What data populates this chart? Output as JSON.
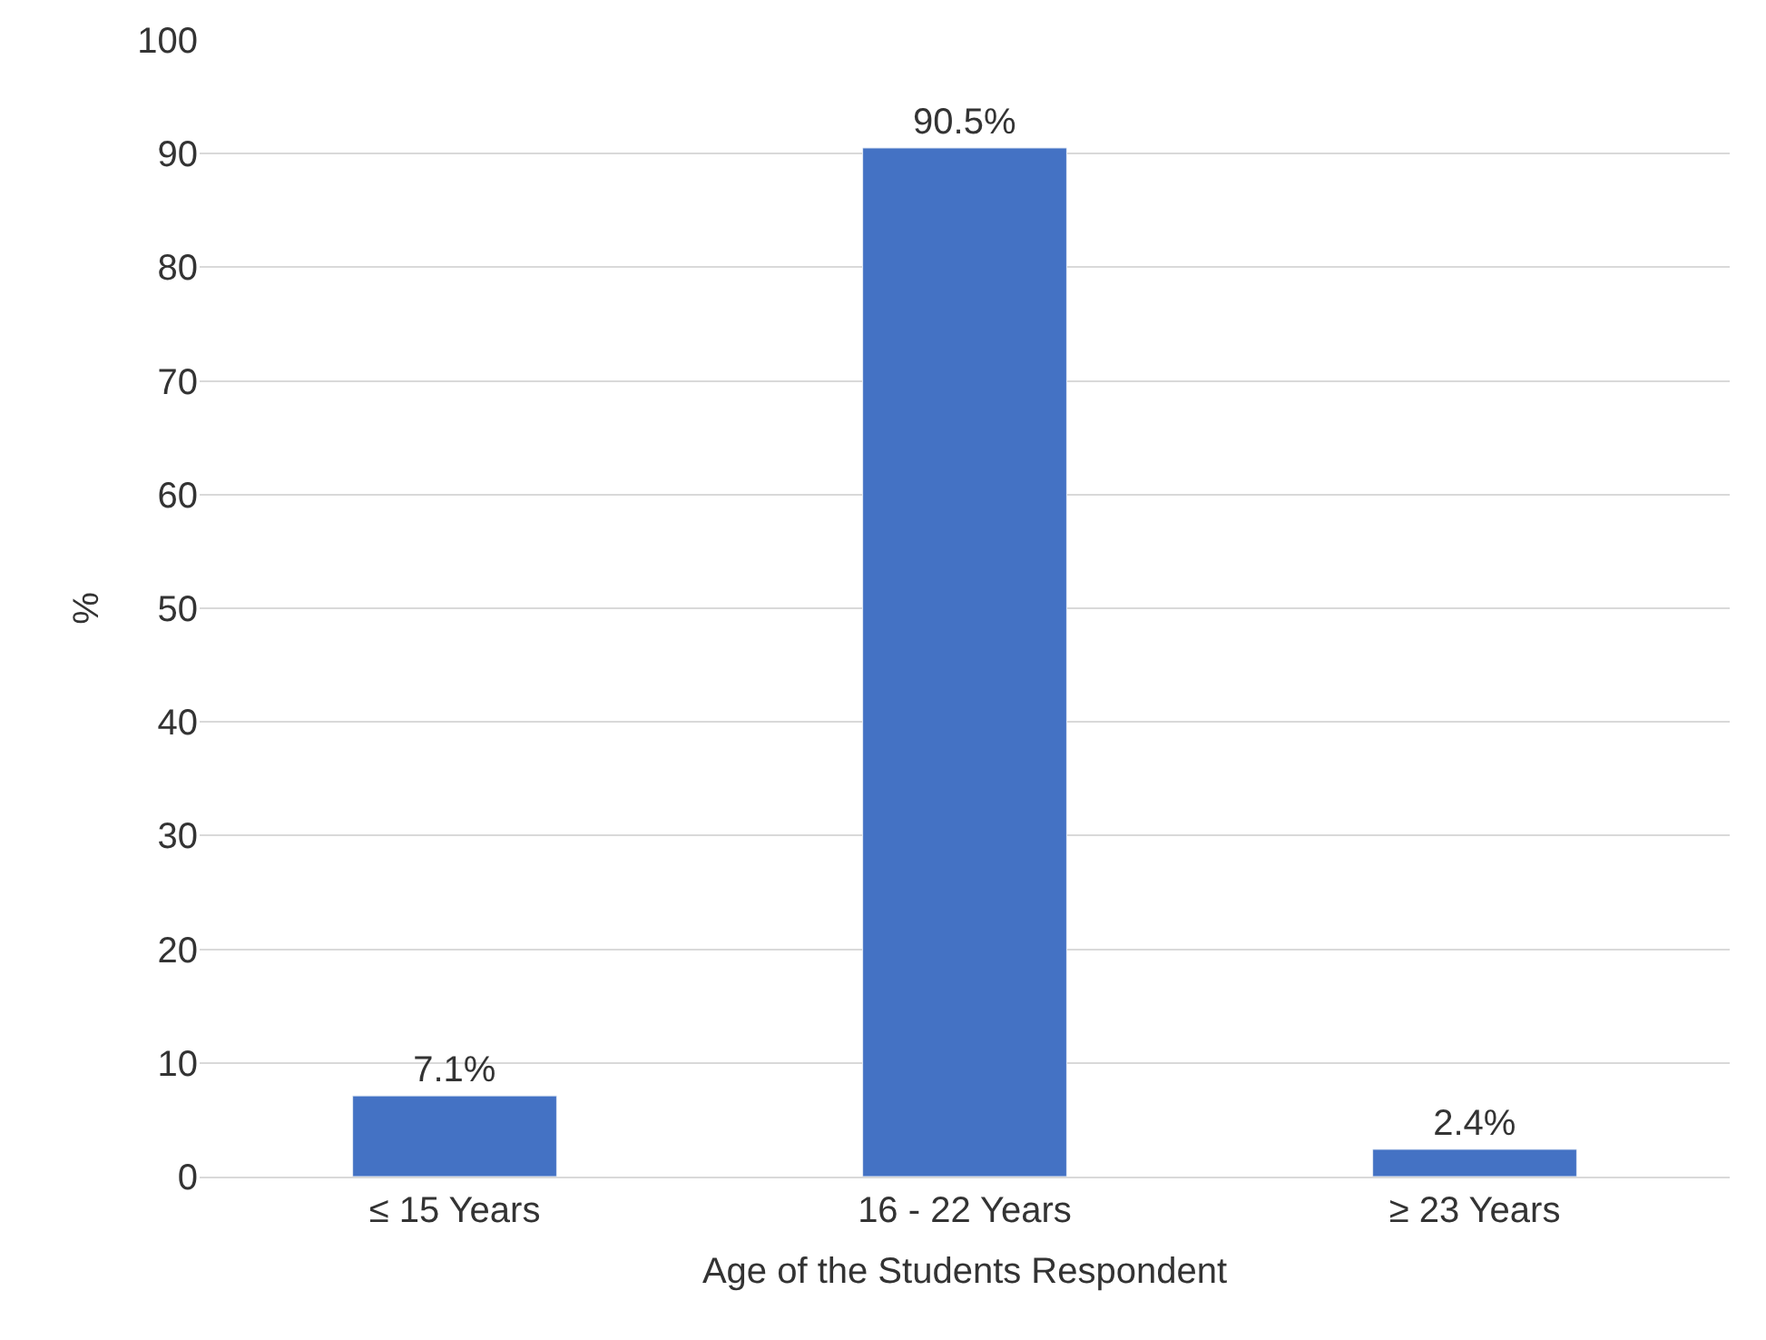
{
  "chart_data": {
    "type": "bar",
    "xlabel": "Age of the Students Respondent",
    "ylabel": "%",
    "categories": [
      "≤ 15 Years",
      "16 - 22 Years",
      "≥ 23 Years"
    ],
    "values": [
      7.1,
      90.5,
      2.4
    ],
    "value_labels": [
      "7.1%",
      "90.5%",
      "2.4%"
    ],
    "color": "#4472c4",
    "ylim": [
      0,
      100
    ],
    "yticks": [
      0,
      10,
      20,
      30,
      40,
      50,
      60,
      70,
      80,
      90,
      100
    ],
    "grid": "y"
  }
}
